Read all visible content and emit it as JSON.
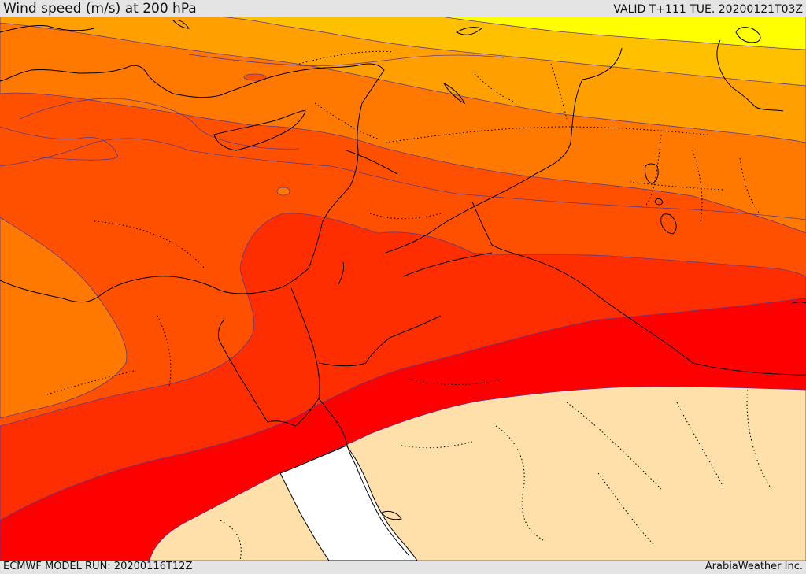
{
  "header": {
    "title": "Wind speed (m/s) at 200 hPa",
    "valid_time": "VALID T+111 TUE. 20200121T03Z"
  },
  "footer": {
    "model_run": "ECMWF MODEL RUN: 20200116T12Z",
    "credit": "ArabiaWeather Inc."
  },
  "colors": {
    "band_yellow": "#ffff00",
    "band_gold": "#ffc000",
    "band_amber": "#ffa000",
    "band_orange": "#ff7800",
    "band_dark_orange": "#ff5000",
    "band_red_orange": "#ff2e00",
    "band_red": "#ff0000",
    "land_below_threshold": "#ffdfaa",
    "sea_below_threshold": "#ffffff",
    "contour_line": "#5a3a8c",
    "coastline": "#000000"
  }
}
